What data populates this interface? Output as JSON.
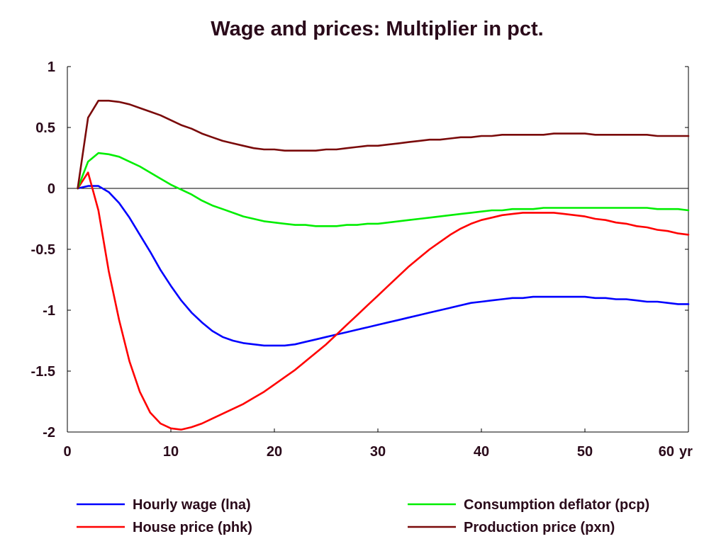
{
  "chart_data": {
    "type": "line",
    "title": "Wage and prices: Multiplier in pct.",
    "xlabel": "",
    "ylabel": "",
    "x_unit_label": "yr",
    "xlim": [
      0,
      60
    ],
    "ylim": [
      -2,
      1
    ],
    "x_ticks": [
      0,
      10,
      20,
      30,
      40,
      50,
      60
    ],
    "y_ticks": [
      1,
      0.5,
      0,
      -0.5,
      -1,
      -1.5,
      -2
    ],
    "x_tick_labels": [
      "0",
      "10",
      "20",
      "30",
      "40",
      "50",
      "60"
    ],
    "y_tick_labels": [
      "1",
      "0.5",
      "0",
      "-0.5",
      "-1",
      "-1.5",
      "-2"
    ],
    "zero_line": true,
    "grid": false,
    "legend_position": "bottom",
    "x": [
      1,
      2,
      3,
      4,
      5,
      6,
      7,
      8,
      9,
      10,
      11,
      12,
      13,
      14,
      15,
      16,
      17,
      18,
      19,
      20,
      21,
      22,
      23,
      24,
      25,
      26,
      27,
      28,
      29,
      30,
      31,
      32,
      33,
      34,
      35,
      36,
      37,
      38,
      39,
      40,
      41,
      42,
      43,
      44,
      45,
      46,
      47,
      48,
      49,
      50,
      51,
      52,
      53,
      54,
      55,
      56,
      57,
      58,
      59,
      60
    ],
    "series": [
      {
        "name": "Hourly wage (lna)",
        "color": "#0000ff",
        "values": [
          0.0,
          0.02,
          0.02,
          -0.03,
          -0.12,
          -0.24,
          -0.38,
          -0.52,
          -0.67,
          -0.8,
          -0.92,
          -1.02,
          -1.1,
          -1.17,
          -1.22,
          -1.25,
          -1.27,
          -1.28,
          -1.29,
          -1.29,
          -1.29,
          -1.28,
          -1.26,
          -1.24,
          -1.22,
          -1.2,
          -1.18,
          -1.16,
          -1.14,
          -1.12,
          -1.1,
          -1.08,
          -1.06,
          -1.04,
          -1.02,
          -1.0,
          -0.98,
          -0.96,
          -0.94,
          -0.93,
          -0.92,
          -0.91,
          -0.9,
          -0.9,
          -0.89,
          -0.89,
          -0.89,
          -0.89,
          -0.89,
          -0.89,
          -0.9,
          -0.9,
          -0.91,
          -0.91,
          -0.92,
          -0.93,
          -0.93,
          -0.94,
          -0.95,
          -0.95
        ]
      },
      {
        "name": "House price (phk)",
        "color": "#ff0000",
        "values": [
          0.0,
          0.13,
          -0.18,
          -0.68,
          -1.08,
          -1.42,
          -1.67,
          -1.84,
          -1.93,
          -1.97,
          -1.98,
          -1.96,
          -1.93,
          -1.89,
          -1.85,
          -1.81,
          -1.77,
          -1.72,
          -1.67,
          -1.61,
          -1.55,
          -1.49,
          -1.42,
          -1.35,
          -1.28,
          -1.2,
          -1.12,
          -1.04,
          -0.96,
          -0.88,
          -0.8,
          -0.72,
          -0.64,
          -0.57,
          -0.5,
          -0.44,
          -0.38,
          -0.33,
          -0.29,
          -0.26,
          -0.24,
          -0.22,
          -0.21,
          -0.2,
          -0.2,
          -0.2,
          -0.2,
          -0.21,
          -0.22,
          -0.23,
          -0.25,
          -0.26,
          -0.28,
          -0.29,
          -0.31,
          -0.32,
          -0.34,
          -0.35,
          -0.37,
          -0.38
        ]
      },
      {
        "name": "Consumption deflator (pcp)",
        "color": "#00ee00",
        "values": [
          0.0,
          0.22,
          0.29,
          0.28,
          0.26,
          0.22,
          0.18,
          0.13,
          0.08,
          0.03,
          -0.01,
          -0.05,
          -0.1,
          -0.14,
          -0.17,
          -0.2,
          -0.23,
          -0.25,
          -0.27,
          -0.28,
          -0.29,
          -0.3,
          -0.3,
          -0.31,
          -0.31,
          -0.31,
          -0.3,
          -0.3,
          -0.29,
          -0.29,
          -0.28,
          -0.27,
          -0.26,
          -0.25,
          -0.24,
          -0.23,
          -0.22,
          -0.21,
          -0.2,
          -0.19,
          -0.18,
          -0.18,
          -0.17,
          -0.17,
          -0.17,
          -0.16,
          -0.16,
          -0.16,
          -0.16,
          -0.16,
          -0.16,
          -0.16,
          -0.16,
          -0.16,
          -0.16,
          -0.16,
          -0.17,
          -0.17,
          -0.17,
          -0.18
        ]
      },
      {
        "name": "Production price (pxn)",
        "color": "#7a0a0a",
        "values": [
          0.0,
          0.58,
          0.72,
          0.72,
          0.71,
          0.69,
          0.66,
          0.63,
          0.6,
          0.56,
          0.52,
          0.49,
          0.45,
          0.42,
          0.39,
          0.37,
          0.35,
          0.33,
          0.32,
          0.32,
          0.31,
          0.31,
          0.31,
          0.31,
          0.32,
          0.32,
          0.33,
          0.34,
          0.35,
          0.35,
          0.36,
          0.37,
          0.38,
          0.39,
          0.4,
          0.4,
          0.41,
          0.42,
          0.42,
          0.43,
          0.43,
          0.44,
          0.44,
          0.44,
          0.44,
          0.44,
          0.45,
          0.45,
          0.45,
          0.45,
          0.44,
          0.44,
          0.44,
          0.44,
          0.44,
          0.44,
          0.43,
          0.43,
          0.43,
          0.43
        ]
      }
    ]
  }
}
